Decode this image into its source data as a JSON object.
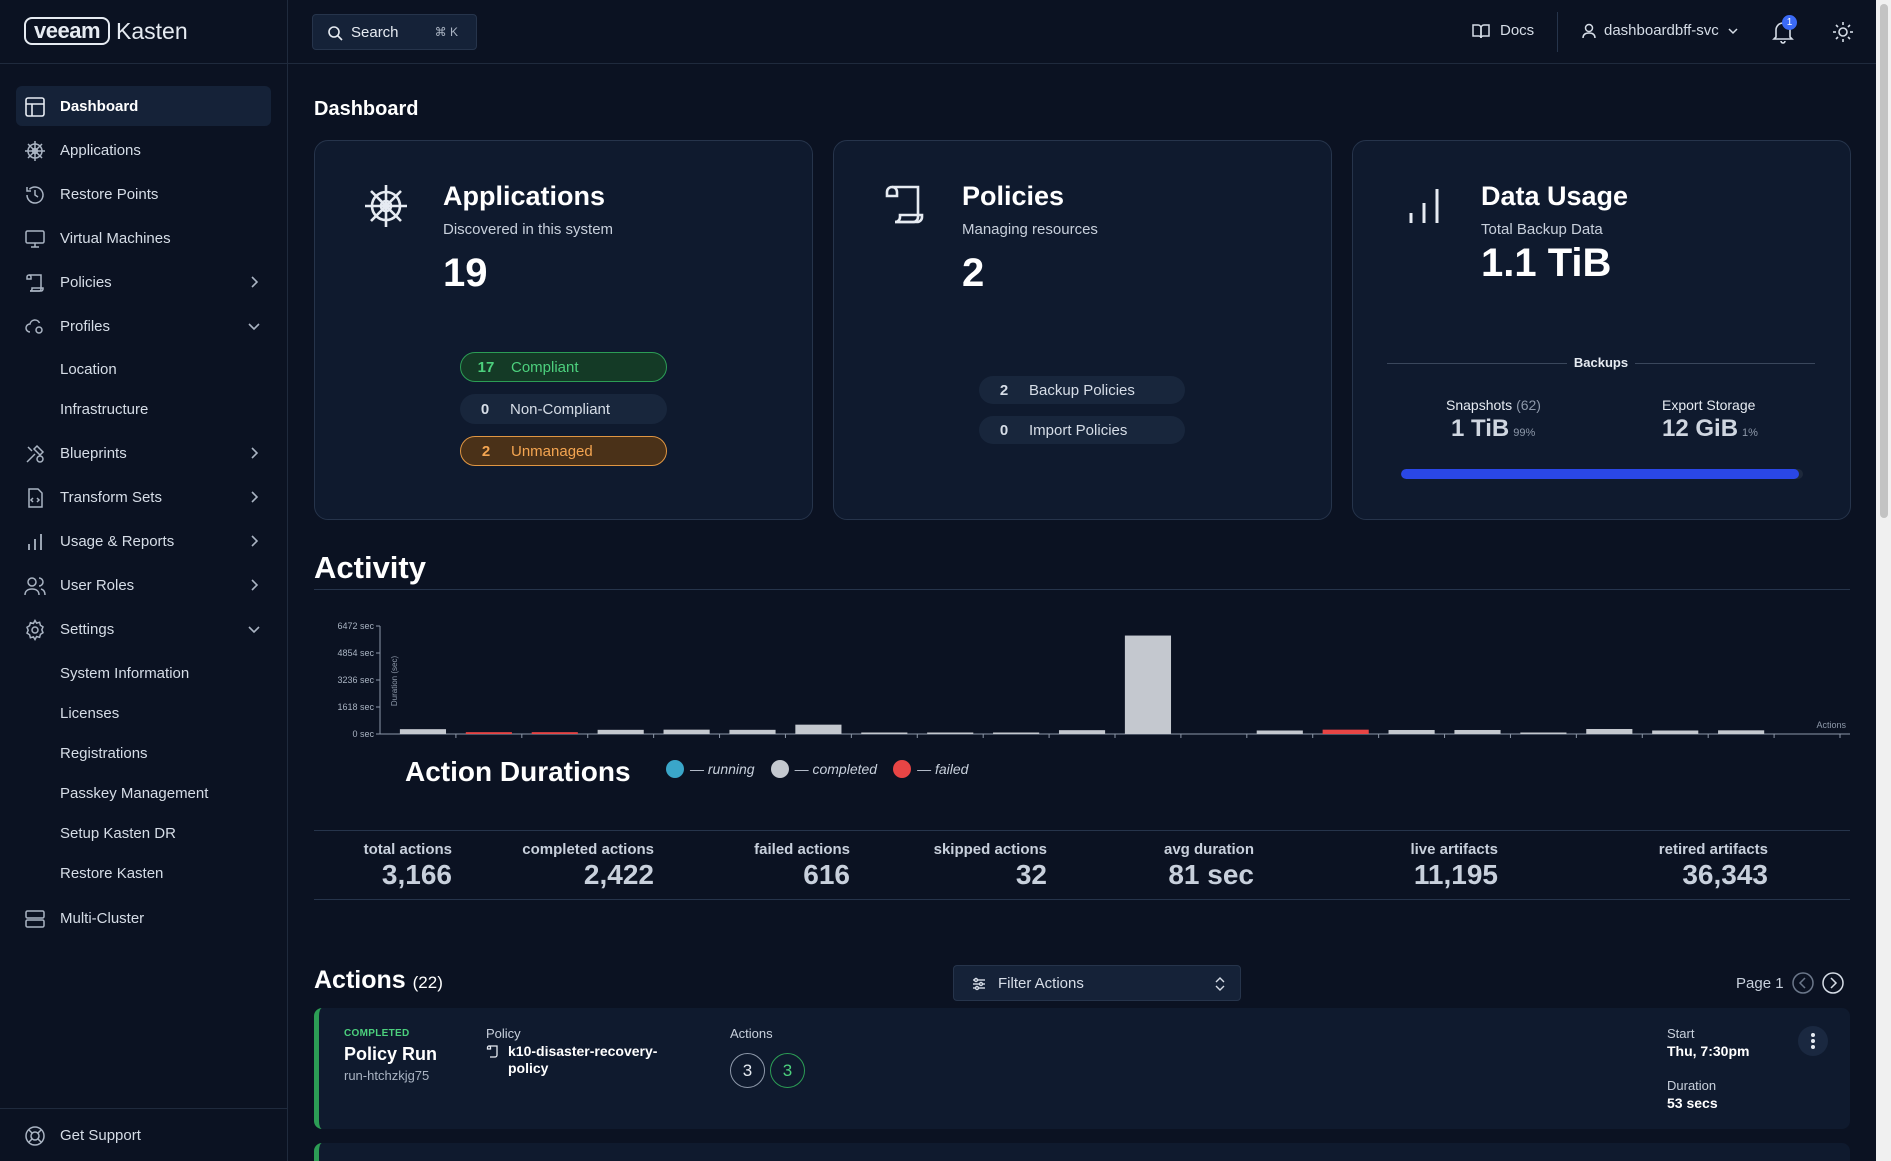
{
  "brand": {
    "box": "veeam",
    "name": "Kasten"
  },
  "sidebar": {
    "items": [
      {
        "label": "Dashboard"
      },
      {
        "label": "Applications"
      },
      {
        "label": "Restore Points"
      },
      {
        "label": "Virtual Machines"
      },
      {
        "label": "Policies"
      },
      {
        "label": "Profiles"
      },
      {
        "label": "Blueprints"
      },
      {
        "label": "Transform Sets"
      },
      {
        "label": "Usage & Reports"
      },
      {
        "label": "User Roles"
      },
      {
        "label": "Settings"
      },
      {
        "label": "Multi-Cluster"
      }
    ],
    "profiles_sub": [
      "Location",
      "Infrastructure"
    ],
    "settings_sub": [
      "System Information",
      "Licenses",
      "Registrations",
      "Passkey Management",
      "Setup Kasten DR",
      "Restore Kasten"
    ],
    "support": "Get Support"
  },
  "topbar": {
    "search_label": "Search",
    "search_shortcut": "⌘ K",
    "docs": "Docs",
    "user": "dashboardbff-svc",
    "notifications": "1"
  },
  "page": {
    "title": "Dashboard"
  },
  "cards": {
    "applications": {
      "title": "Applications",
      "subtitle": "Discovered in this system",
      "count": "19",
      "compliant": {
        "count": "17",
        "label": "Compliant"
      },
      "non_compliant": {
        "count": "0",
        "label": "Non-Compliant"
      },
      "unmanaged": {
        "count": "2",
        "label": "Unmanaged"
      }
    },
    "policies": {
      "title": "Policies",
      "subtitle": "Managing resources",
      "count": "2",
      "backup": {
        "count": "2",
        "label": "Backup Policies"
      },
      "import": {
        "count": "0",
        "label": "Import Policies"
      }
    },
    "data_usage": {
      "title": "Data Usage",
      "subtitle": "Total Backup Data",
      "total": "1.1 TiB",
      "section_label": "Backups",
      "snapshots": {
        "label": "Snapshots",
        "count": "(62)",
        "value": "1 TiB",
        "pct": "99%"
      },
      "export": {
        "label": "Export Storage",
        "value": "12 GiB",
        "pct": "1%"
      },
      "snapshot_fraction": 0.99
    }
  },
  "activity": {
    "title": "Activity",
    "chart_title": "Action Durations",
    "legend": [
      {
        "name": "— running",
        "color": "#3aa6c9"
      },
      {
        "name": "— completed",
        "color": "#c4c8cf"
      },
      {
        "name": "— failed",
        "color": "#e84545"
      }
    ]
  },
  "chart_data": {
    "type": "bar",
    "ylabel": "Duration (sec)",
    "xlabel": "Actions",
    "yticks": [
      "0 sec",
      "1618 sec",
      "3236 sec",
      "4854 sec",
      "6472 sec"
    ],
    "ylim": [
      0,
      6472
    ],
    "values": [
      290,
      110,
      110,
      250,
      260,
      250,
      560,
      60,
      60,
      70,
      230,
      5900,
      0,
      210,
      260,
      240,
      240,
      80,
      300,
      210,
      220,
      0
    ],
    "status": [
      "completed",
      "failed",
      "failed",
      "completed",
      "completed",
      "completed",
      "completed",
      "completed",
      "completed",
      "completed",
      "completed",
      "completed",
      "completed",
      "completed",
      "failed",
      "completed",
      "completed",
      "completed",
      "completed",
      "completed",
      "completed",
      "completed"
    ],
    "colors": {
      "completed": "#c4c8cf",
      "failed": "#e84545",
      "running": "#3aa6c9"
    }
  },
  "stats": [
    {
      "label": "total actions",
      "value": "3,166"
    },
    {
      "label": "completed actions",
      "value": "2,422"
    },
    {
      "label": "failed actions",
      "value": "616"
    },
    {
      "label": "skipped actions",
      "value": "32"
    },
    {
      "label": "avg duration",
      "value": "81 sec"
    },
    {
      "label": "live artifacts",
      "value": "11,195"
    },
    {
      "label": "retired artifacts",
      "value": "36,343"
    }
  ],
  "actions": {
    "title": "Actions",
    "count": "(22)",
    "filter_label": "Filter Actions",
    "page_label": "Page 1",
    "row": {
      "status": "COMPLETED",
      "title": "Policy Run",
      "id": "run-htchzkjg75",
      "policy_label": "Policy",
      "policy": "k10-disaster-recovery-policy",
      "actions_label": "Actions",
      "action_total": "3",
      "action_completed": "3",
      "start_label": "Start",
      "start": "Thu, 7:30pm",
      "duration_label": "Duration",
      "duration": "53 secs"
    }
  }
}
